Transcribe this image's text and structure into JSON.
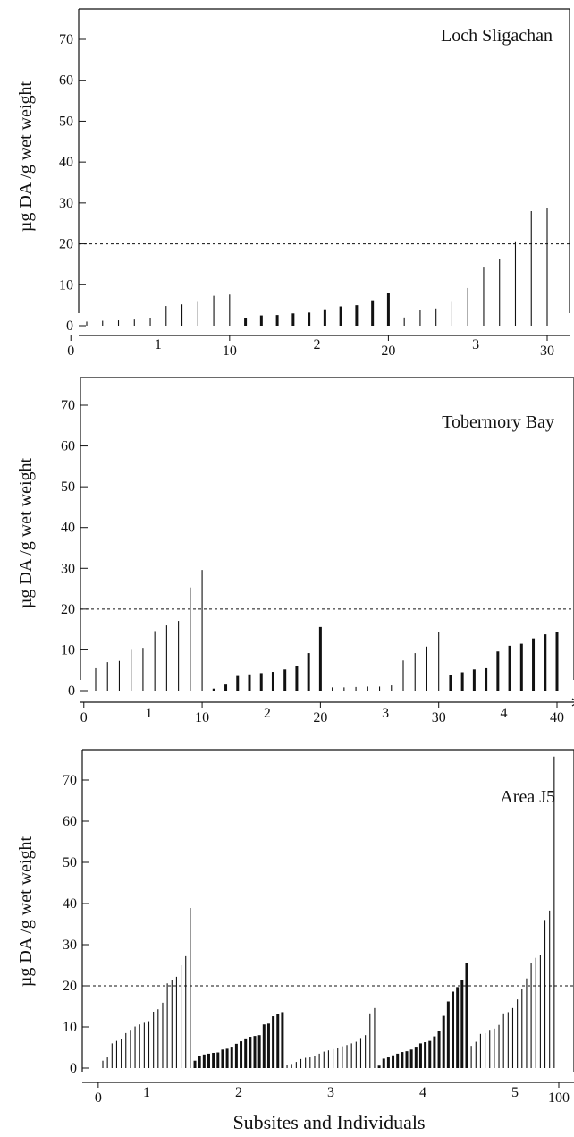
{
  "xlabel": "Subsites and Individuals",
  "chart_data": [
    {
      "type": "bar",
      "title": "Loch Sligachan",
      "ylabel": "µg DA /g wet weight",
      "xlabel": "",
      "ylim": [
        -2,
        78
      ],
      "yticks": [
        0,
        10,
        20,
        30,
        40,
        50,
        60,
        70
      ],
      "threshold": 20,
      "count_ticks": [
        0,
        10,
        20,
        30
      ],
      "subsite_labels": [
        "1",
        "2",
        "3"
      ],
      "subsite_label_positions": [
        5.5,
        15.5,
        25.5
      ],
      "subsites": [
        {
          "name": "1",
          "style": "thin",
          "values": [
            1.0,
            1.2,
            1.3,
            1.5,
            1.8,
            4.8,
            5.2,
            5.8,
            7.3,
            7.6
          ]
        },
        {
          "name": "2",
          "style": "thick",
          "values": [
            1.9,
            2.5,
            2.6,
            3.0,
            3.2,
            4.0,
            4.7,
            5.0,
            6.2,
            8.0
          ]
        },
        {
          "name": "3",
          "style": "thin",
          "values": [
            2.0,
            3.8,
            4.2,
            5.8,
            9.2,
            14.2,
            16.3,
            20.6,
            28.0,
            28.8
          ]
        }
      ]
    },
    {
      "type": "bar",
      "title": "Tobermory Bay",
      "ylabel": "µg DA /g wet weight",
      "xlabel": "",
      "ylim": [
        -2,
        78
      ],
      "yticks": [
        0,
        10,
        20,
        30,
        40,
        50,
        60,
        70
      ],
      "threshold": 20,
      "count_ticks": [
        0,
        10,
        20,
        30,
        40
      ],
      "subsite_labels": [
        "1",
        "2",
        "3",
        "4"
      ],
      "subsite_label_positions": [
        5.5,
        15.5,
        25.5,
        35.5
      ],
      "subsites": [
        {
          "name": "1",
          "style": "thin",
          "values": [
            5.5,
            7.0,
            7.3,
            10.0,
            10.5,
            14.6,
            16.0,
            17.1,
            25.3,
            29.6
          ]
        },
        {
          "name": "2",
          "style": "thick",
          "values": [
            0.5,
            1.5,
            3.6,
            4.0,
            4.3,
            4.6,
            5.2,
            6.0,
            9.2,
            15.6
          ]
        },
        {
          "name": "3",
          "style": "thin",
          "values": [
            0.8,
            0.8,
            0.9,
            1.0,
            1.0,
            1.3,
            7.4,
            9.2,
            10.8,
            14.4
          ]
        },
        {
          "name": "4",
          "style": "thick",
          "values": [
            3.8,
            4.5,
            5.2,
            5.5,
            9.6,
            11.0,
            11.5,
            12.8,
            13.8,
            14.4
          ]
        }
      ]
    },
    {
      "type": "bar",
      "title": "Area J5",
      "ylabel": "µg DA /g wet weight",
      "xlabel": "",
      "ylim": [
        -2,
        78
      ],
      "yticks": [
        0,
        10,
        20,
        30,
        40,
        50,
        60,
        70
      ],
      "threshold": 20,
      "count_ticks": [
        0,
        100
      ],
      "subsite_labels": [
        "1",
        "2",
        "3",
        "4",
        "5"
      ],
      "subsite_label_positions": [
        10.5,
        30.5,
        50.5,
        70.5,
        90.5
      ],
      "subsites": [
        {
          "name": "1",
          "style": "thin",
          "values": [
            1.8,
            2.6,
            6.0,
            6.6,
            7.0,
            8.5,
            9.3,
            10.1,
            10.6,
            11.0,
            11.4,
            13.7,
            14.3,
            15.9,
            20.6,
            21.5,
            22.2,
            25.0,
            27.2,
            38.9
          ]
        },
        {
          "name": "2",
          "style": "thick",
          "values": [
            1.8,
            3.0,
            3.3,
            3.5,
            3.7,
            3.8,
            4.5,
            4.7,
            5.2,
            5.9,
            6.5,
            7.2,
            7.6,
            7.8,
            8.0,
            10.6,
            10.8,
            12.6,
            13.2,
            13.6
          ]
        },
        {
          "name": "3",
          "style": "thin",
          "values": [
            0.8,
            1.0,
            1.5,
            2.2,
            2.5,
            2.6,
            3.0,
            3.5,
            4.0,
            4.3,
            4.6,
            5.0,
            5.3,
            5.6,
            6.0,
            6.4,
            7.3,
            8.0,
            13.3,
            14.6
          ]
        },
        {
          "name": "4",
          "style": "thick",
          "values": [
            0.6,
            2.3,
            2.6,
            3.1,
            3.5,
            3.9,
            4.1,
            4.5,
            5.2,
            6.0,
            6.3,
            6.6,
            7.7,
            9.1,
            12.7,
            16.2,
            18.6,
            19.7,
            21.5,
            25.5
          ]
        },
        {
          "name": "5",
          "style": "thin",
          "values": [
            5.4,
            6.4,
            8.3,
            8.5,
            9.3,
            9.6,
            10.5,
            13.3,
            13.6,
            14.6,
            16.7,
            19.2,
            21.8,
            25.6,
            26.8,
            27.4,
            36.0,
            38.3,
            75.7,
            0
          ]
        }
      ]
    }
  ]
}
